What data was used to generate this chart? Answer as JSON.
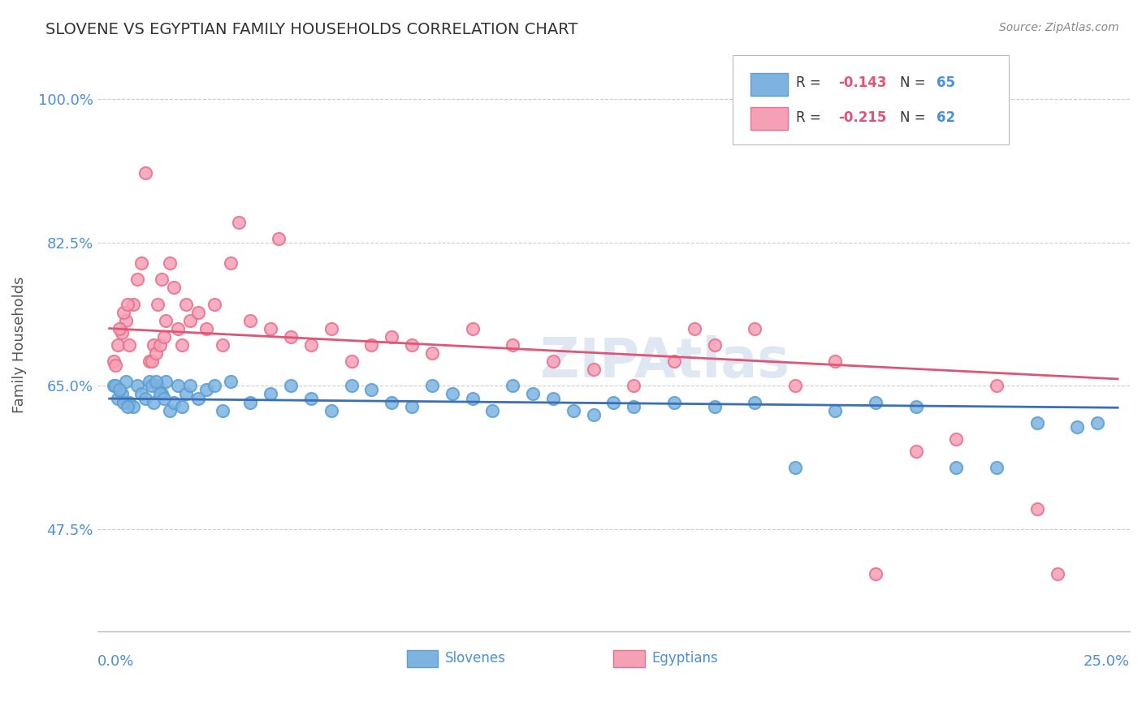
{
  "title": "SLOVENE VS EGYPTIAN FAMILY HOUSEHOLDS CORRELATION CHART",
  "source": "Source: ZipAtlas.com",
  "ylabel": "Family Households",
  "xlabel_start": "0.0%",
  "xlabel_end": "25.0%",
  "xlim": [
    0.0,
    25.0
  ],
  "ylim": [
    35.0,
    105.0
  ],
  "yticks": [
    47.5,
    65.0,
    82.5,
    100.0
  ],
  "ytick_labels": [
    "47.5%",
    "65.0%",
    "82.5%",
    "100.0%"
  ],
  "slovene_color": "#7eb3e0",
  "slovene_edge_color": "#5a9fd4",
  "egyptian_color": "#f5a0b5",
  "egyptian_edge_color": "#e87090",
  "slovene_line_color": "#3a6eb5",
  "egyptian_line_color": "#e05575",
  "slovene_R": -0.143,
  "slovene_N": 65,
  "egyptian_R": -0.215,
  "egyptian_N": 62,
  "background_color": "#ffffff",
  "grid_color": "#cccccc",
  "title_color": "#333333",
  "axis_label_color": "#555555",
  "tick_label_color": "#4a90d9",
  "watermark_color": "#c8d8ea",
  "slovene_x": [
    0.1,
    0.2,
    0.3,
    0.4,
    0.5,
    0.6,
    0.7,
    0.8,
    0.9,
    1.0,
    1.1,
    1.2,
    1.3,
    1.4,
    1.5,
    1.6,
    1.7,
    1.8,
    1.9,
    2.0,
    2.2,
    2.4,
    2.6,
    2.8,
    3.0,
    3.5,
    4.0,
    4.5,
    5.0,
    5.5,
    6.0,
    6.5,
    7.0,
    7.5,
    8.0,
    8.5,
    9.0,
    9.5,
    10.0,
    10.5,
    11.0,
    11.5,
    12.0,
    12.5,
    13.0,
    14.0,
    15.0,
    16.0,
    17.0,
    18.0,
    19.0,
    20.0,
    21.0,
    22.0,
    23.0,
    24.0,
    0.15,
    0.25,
    0.35,
    0.45,
    1.05,
    1.15,
    1.25,
    1.35,
    24.5
  ],
  "slovene_y": [
    65.0,
    63.5,
    64.0,
    65.5,
    63.0,
    62.5,
    65.0,
    64.0,
    63.5,
    65.5,
    63.0,
    65.0,
    64.0,
    65.5,
    62.0,
    63.0,
    65.0,
    62.5,
    64.0,
    65.0,
    63.5,
    64.5,
    65.0,
    62.0,
    65.5,
    63.0,
    64.0,
    65.0,
    63.5,
    62.0,
    65.0,
    64.5,
    63.0,
    62.5,
    65.0,
    64.0,
    63.5,
    62.0,
    65.0,
    64.0,
    63.5,
    62.0,
    61.5,
    63.0,
    62.5,
    63.0,
    62.5,
    63.0,
    55.0,
    62.0,
    63.0,
    62.5,
    55.0,
    55.0,
    60.5,
    60.0,
    65.0,
    64.5,
    63.0,
    62.5,
    65.0,
    65.5,
    64.0,
    63.5,
    60.5
  ],
  "egyptian_x": [
    0.1,
    0.2,
    0.3,
    0.4,
    0.5,
    0.6,
    0.7,
    0.8,
    0.9,
    1.0,
    1.1,
    1.2,
    1.3,
    1.4,
    1.5,
    1.6,
    1.7,
    1.8,
    1.9,
    2.0,
    2.2,
    2.4,
    2.6,
    2.8,
    3.0,
    3.5,
    4.0,
    4.5,
    5.0,
    5.5,
    6.0,
    6.5,
    7.0,
    7.5,
    8.0,
    9.0,
    10.0,
    11.0,
    12.0,
    13.0,
    14.0,
    15.0,
    16.0,
    17.0,
    18.0,
    19.0,
    20.0,
    21.0,
    22.0,
    23.0,
    0.15,
    0.25,
    0.35,
    0.45,
    1.05,
    1.15,
    1.25,
    1.35,
    3.2,
    4.2,
    14.5,
    23.5
  ],
  "egyptian_y": [
    68.0,
    70.0,
    71.5,
    73.0,
    70.0,
    75.0,
    78.0,
    80.0,
    91.0,
    68.0,
    70.0,
    75.0,
    78.0,
    73.0,
    80.0,
    77.0,
    72.0,
    70.0,
    75.0,
    73.0,
    74.0,
    72.0,
    75.0,
    70.0,
    80.0,
    73.0,
    72.0,
    71.0,
    70.0,
    72.0,
    68.0,
    70.0,
    71.0,
    70.0,
    69.0,
    72.0,
    70.0,
    68.0,
    67.0,
    65.0,
    68.0,
    70.0,
    72.0,
    65.0,
    68.0,
    42.0,
    57.0,
    58.5,
    65.0,
    50.0,
    67.5,
    72.0,
    74.0,
    75.0,
    68.0,
    69.0,
    70.0,
    71.0,
    85.0,
    83.0,
    72.0,
    42.0
  ]
}
